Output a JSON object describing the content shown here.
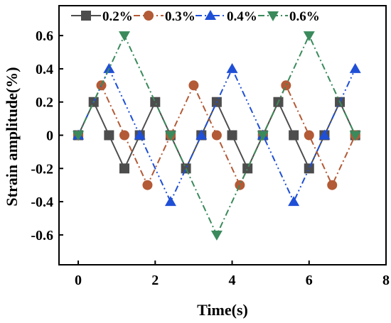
{
  "chart_data": {
    "type": "line",
    "xlabel": "Time(s)",
    "ylabel": "Strain amplitude(%)",
    "xlim": [
      -0.5,
      8
    ],
    "ylim": [
      -0.78,
      0.78
    ],
    "x_ticks": [
      0,
      2,
      4,
      6,
      8
    ],
    "y_ticks": [
      -0.6,
      -0.4,
      -0.2,
      0,
      0.2,
      0.4,
      0.6
    ],
    "x_tick_labels": [
      "0",
      "2",
      "4",
      "6",
      "8"
    ],
    "y_tick_labels": [
      "-0.6",
      "-0.4",
      "-0.2",
      "0",
      "0.2",
      "0.4",
      "0.6"
    ],
    "grid": false,
    "legend_placement": "top",
    "series": [
      {
        "name": "0.2%",
        "color": "#4d4d4d",
        "marker": "square",
        "dash": "solid",
        "points": [
          [
            0,
            0
          ],
          [
            0.4,
            0.2
          ],
          [
            0.8,
            0
          ],
          [
            1.2,
            -0.2
          ],
          [
            1.6,
            0
          ],
          [
            2.0,
            0.2
          ],
          [
            2.4,
            0
          ],
          [
            2.8,
            -0.2
          ],
          [
            3.2,
            0
          ],
          [
            3.6,
            0.2
          ],
          [
            4.0,
            0
          ],
          [
            4.4,
            -0.2
          ],
          [
            4.8,
            0
          ],
          [
            5.2,
            0.2
          ],
          [
            5.6,
            0
          ],
          [
            6.0,
            -0.2
          ],
          [
            6.4,
            0
          ],
          [
            6.8,
            0.2
          ],
          [
            7.2,
            0
          ]
        ]
      },
      {
        "name": "0.3%",
        "color": "#b35a36",
        "marker": "circle",
        "dash": "dashdot",
        "points": [
          [
            0,
            0
          ],
          [
            0.6,
            0.3
          ],
          [
            1.2,
            0
          ],
          [
            1.8,
            -0.3
          ],
          [
            2.4,
            0
          ],
          [
            3.0,
            0.3
          ],
          [
            3.6,
            0
          ],
          [
            4.2,
            -0.3
          ],
          [
            4.8,
            0
          ],
          [
            5.4,
            0.3
          ],
          [
            6.0,
            0
          ],
          [
            6.6,
            -0.3
          ],
          [
            7.2,
            0
          ]
        ]
      },
      {
        "name": "0.4%",
        "color": "#1f4fd6",
        "marker": "triangle-up",
        "dash": "dashdotdot",
        "points": [
          [
            0,
            0
          ],
          [
            0.8,
            0.4
          ],
          [
            1.6,
            0
          ],
          [
            2.4,
            -0.4
          ],
          [
            3.2,
            0
          ],
          [
            4.0,
            0.4
          ],
          [
            4.8,
            0
          ],
          [
            5.6,
            -0.4
          ],
          [
            6.4,
            0
          ],
          [
            7.2,
            0.4
          ]
        ]
      },
      {
        "name": "0.6%",
        "color": "#3a8a5c",
        "marker": "triangle-down",
        "dash": "dashdot",
        "points": [
          [
            0,
            0
          ],
          [
            1.2,
            0.6
          ],
          [
            2.4,
            0
          ],
          [
            3.6,
            -0.6
          ],
          [
            4.8,
            0
          ],
          [
            6.0,
            0.6
          ],
          [
            7.2,
            0
          ]
        ]
      }
    ]
  }
}
